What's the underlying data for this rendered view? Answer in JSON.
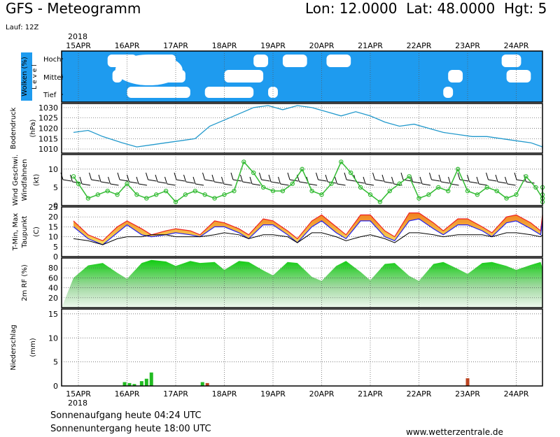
{
  "header": {
    "title": "GFS - Meteogramm",
    "location": "Lon: 12.0000  Lat: 48.0000  Hgt: 5",
    "run": "Lauf: 12Z",
    "year": "2018"
  },
  "footer": {
    "sunrise": "Sonnenaufgang heute 04:24 UTC",
    "sunset": "Sonnenuntergang heute 18:00 UTC",
    "source": "www.wetterzentrale.de"
  },
  "dates": [
    "15APR",
    "16APR",
    "17APR",
    "18APR",
    "19APR",
    "20APR",
    "21APR",
    "22APR",
    "23APR",
    "24APR"
  ],
  "colors": {
    "cloud": "#1e9bef",
    "pressure": "#2299cc",
    "wind_speed": "#33bb33",
    "humidity": "#22cc22",
    "precip_rain": "#22bb22",
    "precip_other": "#bb4422",
    "tmax": "#ee2222",
    "tmin": "#2222ee"
  },
  "chart_data": [
    {
      "type": "heatmap",
      "ylabel": "Wolken (%)",
      "side_label": "L e v e l",
      "levels": [
        "Hoch",
        "Mittel",
        "Tief"
      ],
      "x_unit": "days since 15APR 00Z",
      "clear_spans": {
        "Hoch": [
          [
            0.6,
            1.2
          ],
          [
            1.4,
            2.0
          ],
          [
            3.6,
            3.9
          ],
          [
            4.2,
            4.7
          ],
          [
            5.1,
            5.6
          ],
          [
            8.7,
            9.1
          ],
          [
            9.9,
            10.4
          ]
        ],
        "Mittel": [
          [
            0.7,
            0.9
          ],
          [
            1.2,
            2.2
          ],
          [
            3.0,
            3.8
          ],
          [
            7.6,
            7.9
          ],
          [
            8.8,
            9.3
          ],
          [
            9.8,
            10.2
          ]
        ],
        "Tief": [
          [
            1.0,
            2.3
          ],
          [
            2.6,
            3.6
          ],
          [
            3.9,
            4.1
          ],
          [
            7.5,
            7.7
          ]
        ]
      }
    },
    {
      "type": "line",
      "ylabel": "Bodendruck (hPa)",
      "ylim": [
        1008,
        1032
      ],
      "yticks": [
        1010,
        1015,
        1020,
        1025,
        1030
      ],
      "x": [
        -0.1,
        0.2,
        0.5,
        0.9,
        1.2,
        1.5,
        1.8,
        2.1,
        2.4,
        2.7,
        3.0,
        3.3,
        3.6,
        3.9,
        4.2,
        4.5,
        4.8,
        5.1,
        5.4,
        5.7,
        6.0,
        6.3,
        6.6,
        6.9,
        7.2,
        7.5,
        7.8,
        8.1,
        8.4,
        8.7,
        9.0,
        9.3,
        9.6,
        9.9,
        10.2,
        10.5
      ],
      "values": [
        1018,
        1019,
        1016,
        1013,
        1011,
        1012,
        1013,
        1014,
        1015,
        1021,
        1024,
        1027,
        1030,
        1031,
        1029,
        1031,
        1030,
        1028,
        1026,
        1028,
        1026,
        1023,
        1021,
        1022,
        1020,
        1018,
        1017,
        1016,
        1016,
        1015,
        1014,
        1013,
        1011,
        1012,
        1012,
        1010
      ]
    },
    {
      "type": "line",
      "ylabel": "Wind Geschwi. Windfahnen (kt)",
      "ylim": [
        0,
        14
      ],
      "yticks": [
        0,
        5,
        10
      ],
      "x": [
        -0.1,
        0.0,
        0.2,
        0.4,
        0.6,
        0.8,
        1.0,
        1.2,
        1.4,
        1.6,
        1.8,
        2.0,
        2.2,
        2.4,
        2.6,
        2.8,
        3.0,
        3.2,
        3.4,
        3.6,
        3.8,
        4.0,
        4.2,
        4.4,
        4.6,
        4.8,
        5.0,
        5.2,
        5.4,
        5.6,
        5.8,
        6.0,
        6.2,
        6.4,
        6.6,
        6.8,
        7.0,
        7.2,
        7.4,
        7.6,
        7.8,
        8.0,
        8.2,
        8.4,
        8.6,
        8.8,
        9.0,
        9.2,
        9.4,
        9.6,
        9.8,
        10.0,
        10.2,
        10.5
      ],
      "values": [
        8,
        6,
        2,
        3,
        4,
        3,
        6,
        3,
        2,
        3,
        4,
        1,
        3,
        4,
        3,
        2,
        3,
        4,
        12,
        9,
        5,
        4,
        4,
        6,
        10,
        4,
        3,
        6,
        12,
        9,
        5,
        3,
        1,
        4,
        6,
        8,
        2,
        3,
        5,
        4,
        10,
        4,
        3,
        5,
        4,
        2,
        3,
        8,
        5,
        2,
        1,
        2,
        3,
        5
      ]
    },
    {
      "type": "area",
      "ylabel": "T-Min, Max Taupunkt (C)",
      "ylim": [
        0,
        25
      ],
      "yticks": [
        0,
        5,
        10,
        15,
        20,
        25
      ],
      "x": [
        -0.1,
        0.2,
        0.5,
        0.8,
        1.0,
        1.3,
        1.5,
        1.8,
        2.0,
        2.3,
        2.5,
        2.8,
        3.0,
        3.3,
        3.5,
        3.8,
        4.0,
        4.3,
        4.5,
        4.8,
        5.0,
        5.3,
        5.5,
        5.8,
        6.0,
        6.3,
        6.5,
        6.8,
        7.0,
        7.3,
        7.5,
        7.8,
        8.0,
        8.3,
        8.5,
        8.8,
        9.0,
        9.3,
        9.5,
        9.8,
        10.0,
        10.2,
        10.5
      ],
      "series": [
        {
          "name": "Max",
          "values": [
            18,
            11,
            8,
            15,
            18,
            14,
            11,
            13,
            14,
            13,
            11,
            18,
            17,
            14,
            11,
            19,
            18,
            13,
            9,
            18,
            21,
            15,
            11,
            21,
            21,
            13,
            10,
            22,
            22,
            17,
            13,
            19,
            19,
            15,
            12,
            20,
            21,
            17,
            13,
            21,
            20,
            15,
            21
          ]
        },
        {
          "name": "Min",
          "values": [
            15,
            9,
            6,
            12,
            16,
            11,
            10,
            11,
            12,
            11,
            10,
            15,
            15,
            12,
            9,
            16,
            16,
            11,
            7,
            15,
            18,
            12,
            9,
            18,
            18,
            10,
            8,
            18,
            19,
            14,
            11,
            16,
            16,
            13,
            10,
            17,
            18,
            14,
            11,
            18,
            17,
            13,
            18
          ]
        },
        {
          "name": "Taupunkt",
          "values": [
            9,
            8,
            6,
            9,
            10,
            10,
            11,
            11,
            10,
            10,
            10,
            11,
            12,
            11,
            9,
            11,
            11,
            10,
            7,
            12,
            12,
            10,
            8,
            10,
            11,
            9,
            7,
            12,
            12,
            11,
            10,
            11,
            11,
            11,
            10,
            12,
            12,
            11,
            10,
            11,
            10,
            10,
            13
          ]
        }
      ]
    },
    {
      "type": "area",
      "ylabel": "2m RF (%)",
      "ylim": [
        0,
        100
      ],
      "yticks": [
        20,
        40,
        60,
        80
      ],
      "x": [
        -0.1,
        0.2,
        0.5,
        0.8,
        1.0,
        1.3,
        1.5,
        1.8,
        2.0,
        2.3,
        2.5,
        2.8,
        3.0,
        3.3,
        3.5,
        3.8,
        4.0,
        4.3,
        4.5,
        4.8,
        5.0,
        5.3,
        5.5,
        5.8,
        6.0,
        6.3,
        6.5,
        6.8,
        7.0,
        7.3,
        7.5,
        7.8,
        8.0,
        8.3,
        8.5,
        8.8,
        9.0,
        9.3,
        9.5,
        9.8,
        10.0,
        10.2,
        10.5
      ],
      "values": [
        60,
        85,
        90,
        70,
        58,
        90,
        96,
        93,
        84,
        94,
        90,
        92,
        76,
        94,
        92,
        75,
        65,
        92,
        90,
        62,
        54,
        84,
        94,
        72,
        55,
        88,
        90,
        64,
        54,
        88,
        92,
        78,
        68,
        90,
        92,
        84,
        76,
        86,
        92,
        80,
        62,
        86,
        60
      ]
    },
    {
      "type": "bar",
      "ylabel": "Niederschlag (mm)",
      "ylim": [
        0,
        16
      ],
      "yticks": [
        0,
        5,
        10,
        15
      ],
      "x": [
        0.95,
        1.05,
        1.15,
        1.3,
        1.4,
        1.5,
        2.55,
        2.65,
        8.0
      ],
      "values": [
        0.8,
        0.6,
        0.4,
        1.0,
        1.5,
        2.8,
        0.8,
        0.6,
        1.6
      ]
    }
  ]
}
